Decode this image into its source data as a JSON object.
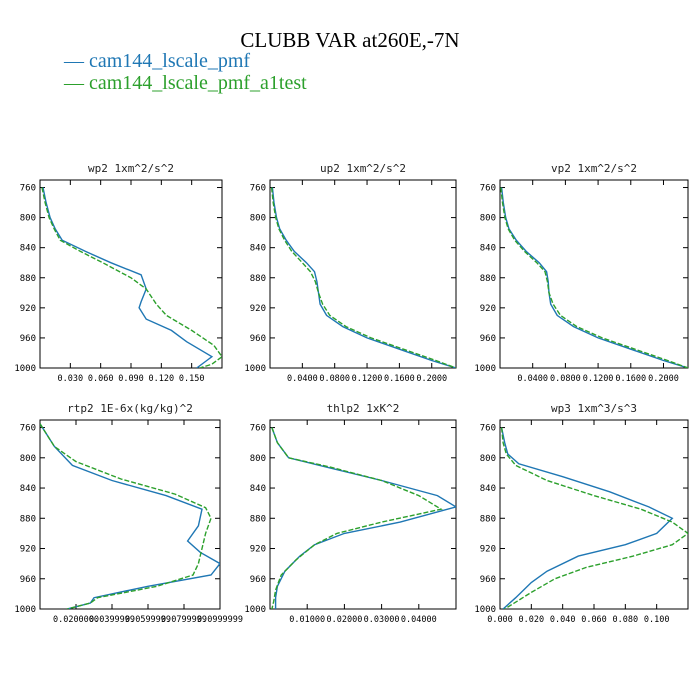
{
  "title": "CLUBB VAR at260E,-7N",
  "legend": [
    {
      "label": "cam144_lscale_pmf",
      "color": "#1f77b4"
    },
    {
      "label": "cam144_lscale_pmf_a1test",
      "color": "#2ca02c"
    }
  ],
  "chart_data": [
    {
      "type": "line",
      "title": "wp2   1xm^2/s^2",
      "ylim": [
        1000,
        750
      ],
      "y_ticks": [
        "760",
        "800",
        "840",
        "880",
        "920",
        "960",
        "1000"
      ],
      "xlim": [
        0.0,
        0.18
      ],
      "x_ticks": [
        "0.030",
        "0.060",
        "0.090",
        "0.120",
        "0.150"
      ],
      "series": [
        {
          "name": "cam144_lscale_pmf",
          "color": "#1f77b4",
          "dashed": false,
          "x": [
            0.003,
            0.006,
            0.01,
            0.015,
            0.022,
            0.045,
            0.07,
            0.1,
            0.105,
            0.1,
            0.098,
            0.105,
            0.13,
            0.145,
            0.17,
            0.165,
            0.155
          ],
          "y": [
            760,
            780,
            800,
            815,
            830,
            845,
            860,
            876,
            895,
            912,
            920,
            935,
            950,
            965,
            985,
            990,
            1000
          ]
        },
        {
          "name": "cam144_lscale_pmf_a1test",
          "color": "#2ca02c",
          "dashed": true,
          "x": [
            0.002,
            0.005,
            0.009,
            0.014,
            0.02,
            0.04,
            0.062,
            0.09,
            0.105,
            0.115,
            0.125,
            0.15,
            0.172,
            0.18,
            0.17,
            0.158
          ],
          "y": [
            760,
            780,
            800,
            815,
            830,
            845,
            860,
            880,
            895,
            915,
            930,
            950,
            970,
            985,
            995,
            1000
          ]
        }
      ]
    },
    {
      "type": "line",
      "title": "up2   1xm^2/s^2",
      "ylim": [
        1000,
        750
      ],
      "y_ticks": [
        "760",
        "800",
        "840",
        "880",
        "920",
        "960",
        "1000"
      ],
      "xlim": [
        0.0,
        0.23
      ],
      "x_ticks": [
        "0.0400",
        "0.0800",
        "0.1200",
        "0.1600",
        "0.2000"
      ],
      "series": [
        {
          "name": "cam144_lscale_pmf",
          "color": "#1f77b4",
          "dashed": false,
          "x": [
            0.003,
            0.005,
            0.008,
            0.012,
            0.02,
            0.03,
            0.045,
            0.055,
            0.058,
            0.06,
            0.062,
            0.07,
            0.09,
            0.12,
            0.16,
            0.2,
            0.23
          ],
          "y": [
            760,
            780,
            800,
            815,
            830,
            845,
            860,
            872,
            885,
            900,
            915,
            930,
            945,
            960,
            975,
            990,
            1000
          ]
        },
        {
          "name": "cam144_lscale_pmf_a1test",
          "color": "#2ca02c",
          "dashed": true,
          "x": [
            0.002,
            0.004,
            0.007,
            0.011,
            0.018,
            0.027,
            0.04,
            0.05,
            0.056,
            0.06,
            0.065,
            0.074,
            0.094,
            0.125,
            0.165,
            0.205,
            0.23
          ],
          "y": [
            760,
            780,
            800,
            815,
            830,
            845,
            860,
            872,
            885,
            900,
            915,
            930,
            945,
            960,
            975,
            990,
            1000
          ]
        }
      ]
    },
    {
      "type": "line",
      "title": "vp2   1xm^2/s^2",
      "ylim": [
        1000,
        750
      ],
      "y_ticks": [
        "760",
        "800",
        "840",
        "880",
        "920",
        "960",
        "1000"
      ],
      "xlim": [
        0.0,
        0.23
      ],
      "x_ticks": [
        "0.0400",
        "0.0800",
        "0.1200",
        "0.1600",
        "0.2000"
      ],
      "series": [
        {
          "name": "cam144_lscale_pmf",
          "color": "#1f77b4",
          "dashed": false,
          "x": [
            0.002,
            0.004,
            0.007,
            0.011,
            0.02,
            0.032,
            0.048,
            0.057,
            0.059,
            0.06,
            0.062,
            0.07,
            0.09,
            0.12,
            0.16,
            0.2,
            0.23
          ],
          "y": [
            760,
            780,
            800,
            815,
            830,
            845,
            860,
            872,
            885,
            900,
            915,
            930,
            945,
            960,
            975,
            990,
            1000
          ]
        },
        {
          "name": "cam144_lscale_pmf_a1test",
          "color": "#2ca02c",
          "dashed": true,
          "x": [
            0.001,
            0.003,
            0.006,
            0.01,
            0.018,
            0.03,
            0.045,
            0.055,
            0.058,
            0.06,
            0.065,
            0.074,
            0.094,
            0.125,
            0.165,
            0.205,
            0.23
          ],
          "y": [
            760,
            780,
            800,
            815,
            830,
            845,
            860,
            872,
            885,
            900,
            915,
            930,
            945,
            960,
            975,
            990,
            1000
          ]
        }
      ]
    },
    {
      "type": "line",
      "title": "rtp2   1E-6x(kg/kg)^2",
      "ylim": [
        1000,
        750
      ],
      "y_ticks": [
        "760",
        "800",
        "840",
        "880",
        "920",
        "960",
        "1000"
      ],
      "xlim": [
        0.0,
        0.1
      ],
      "x_ticks": [
        "0.0200000",
        "0.0399999",
        "0.0599999",
        "0.0799999",
        "0.0999999"
      ],
      "x_tick_values": [
        0.02,
        0.04,
        0.06,
        0.08,
        0.1
      ],
      "series": [
        {
          "name": "cam144_lscale_pmf",
          "color": "#1f77b4",
          "dashed": false,
          "x": [
            0.0,
            0.008,
            0.018,
            0.04,
            0.07,
            0.09,
            0.088,
            0.082,
            0.089,
            0.1,
            0.095,
            0.06,
            0.03,
            0.028,
            0.015
          ],
          "y": [
            755,
            785,
            810,
            830,
            850,
            868,
            890,
            910,
            925,
            940,
            955,
            970,
            985,
            992,
            1000
          ]
        },
        {
          "name": "cam144_lscale_pmf_a1test",
          "color": "#2ca02c",
          "dashed": true,
          "x": [
            0.0,
            0.008,
            0.02,
            0.045,
            0.075,
            0.092,
            0.095,
            0.092,
            0.09,
            0.088,
            0.085,
            0.065,
            0.032,
            0.028,
            0.015
          ],
          "y": [
            755,
            785,
            805,
            828,
            848,
            866,
            880,
            900,
            920,
            940,
            955,
            970,
            985,
            992,
            1000
          ]
        }
      ]
    },
    {
      "type": "line",
      "title": "thlp2   1xK^2",
      "ylim": [
        1000,
        750
      ],
      "y_ticks": [
        "760",
        "800",
        "840",
        "880",
        "920",
        "960",
        "1000"
      ],
      "xlim": [
        0.0,
        0.05
      ],
      "x_ticks": [
        "0.01000",
        "0.02000",
        "0.03000",
        "0.04000"
      ],
      "series": [
        {
          "name": "cam144_lscale_pmf",
          "color": "#1f77b4",
          "dashed": false,
          "x": [
            0.0005,
            0.002,
            0.005,
            0.015,
            0.03,
            0.045,
            0.05,
            0.035,
            0.02,
            0.012,
            0.008,
            0.004,
            0.002,
            0.0015,
            0.0015
          ],
          "y": [
            760,
            780,
            800,
            812,
            830,
            850,
            865,
            885,
            900,
            915,
            930,
            950,
            970,
            985,
            1000
          ]
        },
        {
          "name": "cam144_lscale_pmf_a1test",
          "color": "#2ca02c",
          "dashed": true,
          "x": [
            0.0005,
            0.002,
            0.005,
            0.016,
            0.03,
            0.04,
            0.046,
            0.03,
            0.018,
            0.012,
            0.007,
            0.003,
            0.0015,
            0.001,
            0.0005
          ],
          "y": [
            760,
            780,
            800,
            812,
            830,
            850,
            868,
            885,
            900,
            915,
            935,
            955,
            975,
            990,
            1000
          ]
        }
      ]
    },
    {
      "type": "line",
      "title": "wp3   1xm^3/s^3",
      "ylim": [
        1000,
        750
      ],
      "y_ticks": [
        "760",
        "800",
        "840",
        "880",
        "920",
        "960",
        "1000"
      ],
      "xlim": [
        0.0,
        0.12
      ],
      "x_ticks": [
        "0.000",
        "0.020",
        "0.040",
        "0.060",
        "0.080",
        "0.100"
      ],
      "x_tick_values": [
        0.0,
        0.02,
        0.04,
        0.06,
        0.08,
        0.1
      ],
      "series": [
        {
          "name": "cam144_lscale_pmf",
          "color": "#1f77b4",
          "dashed": false,
          "x": [
            0.001,
            0.003,
            0.005,
            0.012,
            0.04,
            0.07,
            0.095,
            0.11,
            0.1,
            0.08,
            0.05,
            0.03,
            0.02,
            0.01,
            0.002
          ],
          "y": [
            760,
            780,
            795,
            808,
            825,
            845,
            865,
            880,
            900,
            915,
            930,
            950,
            965,
            985,
            1000
          ]
        },
        {
          "name": "cam144_lscale_pmf_a1test",
          "color": "#2ca02c",
          "dashed": true,
          "x": [
            0.001,
            0.002,
            0.004,
            0.01,
            0.03,
            0.06,
            0.09,
            0.11,
            0.12,
            0.11,
            0.085,
            0.055,
            0.035,
            0.02,
            0.003
          ],
          "y": [
            760,
            780,
            795,
            810,
            830,
            850,
            868,
            885,
            900,
            915,
            930,
            945,
            960,
            978,
            1000
          ]
        }
      ]
    }
  ]
}
